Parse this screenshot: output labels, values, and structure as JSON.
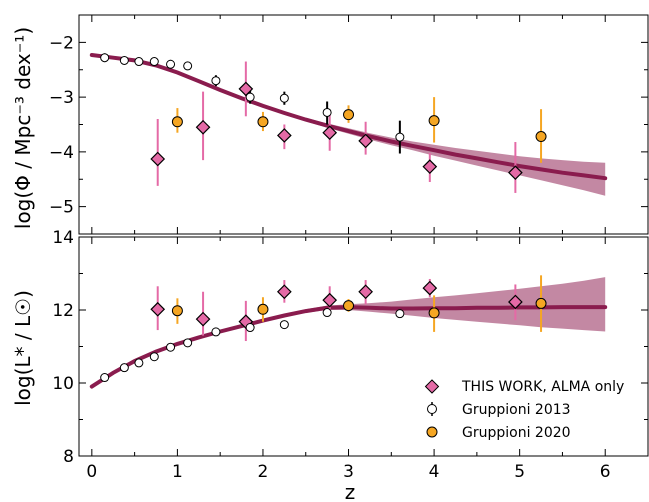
{
  "chart_data": [
    {
      "type": "scatter",
      "panel": "top",
      "ylabel": "log(Φ / Mpc⁻³ dex⁻¹)",
      "xlim": [
        -0.15,
        6.5
      ],
      "ylim": [
        -5.5,
        -1.5
      ],
      "yticks": [
        -5,
        -4,
        -3,
        -2
      ],
      "ytick_labels": [
        "−5",
        "−4",
        "−3",
        "−2"
      ],
      "series": [
        {
          "name": "THIS WORK, ALMA only",
          "color": "#e46aa6",
          "edge_color": "#000000",
          "marker": "diamond",
          "points": [
            {
              "x": 0.77,
              "y": -4.13,
              "lo": -4.62,
              "hi": -3.4
            },
            {
              "x": 1.3,
              "y": -3.55,
              "lo": -4.15,
              "hi": -2.9
            },
            {
              "x": 1.8,
              "y": -2.85,
              "lo": -3.35,
              "hi": -2.35
            },
            {
              "x": 2.25,
              "y": -3.7,
              "lo": -3.95,
              "hi": -3.5
            },
            {
              "x": 2.78,
              "y": -3.65,
              "lo": -3.98,
              "hi": -3.3
            },
            {
              "x": 3.2,
              "y": -3.8,
              "lo": -4.05,
              "hi": -3.45
            },
            {
              "x": 3.95,
              "y": -4.27,
              "lo": -4.55,
              "hi": -4.02
            },
            {
              "x": 4.95,
              "y": -4.38,
              "lo": -4.75,
              "hi": -3.82
            }
          ]
        },
        {
          "name": "Gruppioni 2013",
          "color": "#ffffff",
          "edge_color": "#000000",
          "marker": "circle",
          "points": [
            {
              "x": 0.15,
              "y": -2.28,
              "lo": -2.36,
              "hi": -2.2
            },
            {
              "x": 0.38,
              "y": -2.33,
              "lo": -2.4,
              "hi": -2.26
            },
            {
              "x": 0.55,
              "y": -2.35,
              "lo": -2.42,
              "hi": -2.28
            },
            {
              "x": 0.73,
              "y": -2.35,
              "lo": -2.42,
              "hi": -2.28
            },
            {
              "x": 0.92,
              "y": -2.4,
              "lo": -2.48,
              "hi": -2.32
            },
            {
              "x": 1.12,
              "y": -2.43,
              "lo": -2.5,
              "hi": -2.36
            },
            {
              "x": 1.45,
              "y": -2.7,
              "lo": -2.8,
              "hi": -2.6
            },
            {
              "x": 1.85,
              "y": -3.0,
              "lo": -3.12,
              "hi": -2.88
            },
            {
              "x": 2.25,
              "y": -3.02,
              "lo": -3.14,
              "hi": -2.9
            },
            {
              "x": 2.75,
              "y": -3.28,
              "lo": -3.5,
              "hi": -3.08
            },
            {
              "x": 3.6,
              "y": -3.73,
              "lo": -4.03,
              "hi": -3.43
            }
          ]
        },
        {
          "name": "Gruppioni 2020",
          "color": "#f5a623",
          "edge_color": "#000000",
          "marker": "circle",
          "points": [
            {
              "x": 1.0,
              "y": -3.45,
              "lo": -3.65,
              "hi": -3.2
            },
            {
              "x": 2.0,
              "y": -3.45,
              "lo": -3.62,
              "hi": -3.27
            },
            {
              "x": 3.0,
              "y": -3.32,
              "lo": -3.47,
              "hi": -3.15
            },
            {
              "x": 4.0,
              "y": -3.43,
              "lo": -3.83,
              "hi": -3.0
            },
            {
              "x": 5.25,
              "y": -3.72,
              "lo": -4.2,
              "hi": -3.22
            }
          ]
        }
      ],
      "model": {
        "color": "#8a1c4e",
        "band_color": "#b46a8c",
        "x": [
          0.0,
          0.25,
          0.5,
          0.75,
          1.0,
          1.25,
          1.5,
          1.75,
          2.0,
          2.25,
          2.5,
          2.75,
          3.0,
          3.25,
          3.5,
          3.75,
          4.0,
          4.25,
          4.5,
          4.75,
          5.0,
          5.25,
          5.5,
          5.75,
          6.0
        ],
        "y": [
          -2.23,
          -2.28,
          -2.33,
          -2.42,
          -2.55,
          -2.71,
          -2.87,
          -3.02,
          -3.16,
          -3.29,
          -3.41,
          -3.52,
          -3.62,
          -3.72,
          -3.81,
          -3.89,
          -3.97,
          -4.05,
          -4.12,
          -4.19,
          -4.26,
          -4.32,
          -4.38,
          -4.43,
          -4.48
        ],
        "lo": [
          -2.26,
          -2.31,
          -2.36,
          -2.45,
          -2.58,
          -2.74,
          -2.9,
          -3.05,
          -3.19,
          -3.32,
          -3.44,
          -3.56,
          -3.67,
          -3.78,
          -3.88,
          -3.97,
          -4.07,
          -4.16,
          -4.25,
          -4.34,
          -4.43,
          -4.52,
          -4.61,
          -4.7,
          -4.8
        ],
        "hi": [
          -2.2,
          -2.25,
          -2.3,
          -2.39,
          -2.52,
          -2.68,
          -2.84,
          -2.99,
          -3.13,
          -3.26,
          -3.38,
          -3.48,
          -3.57,
          -3.66,
          -3.74,
          -3.81,
          -3.87,
          -3.93,
          -3.98,
          -4.03,
          -4.08,
          -4.12,
          -4.15,
          -4.18,
          -4.2
        ]
      }
    },
    {
      "type": "scatter",
      "panel": "bottom",
      "xlabel": "z",
      "ylabel": "log(L* / L☉)",
      "xlim": [
        -0.15,
        6.5
      ],
      "ylim": [
        8,
        14
      ],
      "xticks": [
        0,
        1,
        2,
        3,
        4,
        5,
        6
      ],
      "xtick_labels": [
        "0",
        "1",
        "2",
        "3",
        "4",
        "5",
        "6"
      ],
      "yticks": [
        8,
        10,
        12,
        14
      ],
      "ytick_labels": [
        "8",
        "10",
        "12",
        "14"
      ],
      "series": [
        {
          "name": "THIS WORK, ALMA only",
          "color": "#e46aa6",
          "edge_color": "#000000",
          "marker": "diamond",
          "points": [
            {
              "x": 0.77,
              "y": 12.02,
              "lo": 11.45,
              "hi": 12.65
            },
            {
              "x": 1.3,
              "y": 11.75,
              "lo": 11.3,
              "hi": 12.5
            },
            {
              "x": 1.8,
              "y": 11.68,
              "lo": 11.15,
              "hi": 12.25
            },
            {
              "x": 2.25,
              "y": 12.5,
              "lo": 12.2,
              "hi": 12.82
            },
            {
              "x": 2.78,
              "y": 12.27,
              "lo": 11.95,
              "hi": 12.65
            },
            {
              "x": 3.2,
              "y": 12.5,
              "lo": 12.15,
              "hi": 12.82
            },
            {
              "x": 3.95,
              "y": 12.6,
              "lo": 12.35,
              "hi": 12.85
            },
            {
              "x": 4.95,
              "y": 12.22,
              "lo": 11.72,
              "hi": 12.7
            }
          ]
        },
        {
          "name": "Gruppioni 2013",
          "color": "#ffffff",
          "edge_color": "#000000",
          "marker": "circle",
          "points": [
            {
              "x": 0.15,
              "y": 10.15,
              "lo": 10.08,
              "hi": 10.22
            },
            {
              "x": 0.38,
              "y": 10.42,
              "lo": 10.35,
              "hi": 10.49
            },
            {
              "x": 0.55,
              "y": 10.55,
              "lo": 10.48,
              "hi": 10.62
            },
            {
              "x": 0.73,
              "y": 10.72,
              "lo": 10.65,
              "hi": 10.79
            },
            {
              "x": 0.92,
              "y": 10.98,
              "lo": 10.9,
              "hi": 11.06
            },
            {
              "x": 1.12,
              "y": 11.1,
              "lo": 11.02,
              "hi": 11.18
            },
            {
              "x": 1.45,
              "y": 11.4,
              "lo": 11.32,
              "hi": 11.48
            },
            {
              "x": 1.85,
              "y": 11.52,
              "lo": 11.44,
              "hi": 11.6
            },
            {
              "x": 2.25,
              "y": 11.6,
              "lo": 11.52,
              "hi": 11.68
            },
            {
              "x": 2.75,
              "y": 11.93,
              "lo": 11.85,
              "hi": 12.01
            },
            {
              "x": 3.6,
              "y": 11.9,
              "lo": 11.82,
              "hi": 11.98
            }
          ]
        },
        {
          "name": "Gruppioni 2020",
          "color": "#f5a623",
          "edge_color": "#000000",
          "marker": "circle",
          "points": [
            {
              "x": 1.0,
              "y": 11.98,
              "lo": 11.62,
              "hi": 12.32
            },
            {
              "x": 2.0,
              "y": 12.02,
              "lo": 11.68,
              "hi": 12.35
            },
            {
              "x": 3.0,
              "y": 12.12,
              "lo": 11.95,
              "hi": 12.3
            },
            {
              "x": 4.0,
              "y": 11.92,
              "lo": 11.4,
              "hi": 12.4
            },
            {
              "x": 5.25,
              "y": 12.18,
              "lo": 11.4,
              "hi": 12.95
            }
          ]
        }
      ],
      "model": {
        "color": "#8a1c4e",
        "band_color": "#b46a8c",
        "x": [
          0.0,
          0.25,
          0.5,
          0.75,
          1.0,
          1.25,
          1.5,
          1.75,
          2.0,
          2.25,
          2.5,
          2.75,
          3.0,
          3.25,
          3.5,
          3.75,
          4.0,
          4.25,
          4.5,
          4.75,
          5.0,
          5.25,
          5.5,
          5.75,
          6.0
        ],
        "y": [
          9.9,
          10.28,
          10.6,
          10.86,
          11.07,
          11.25,
          11.41,
          11.56,
          11.71,
          11.85,
          11.97,
          12.06,
          12.08,
          12.06,
          12.04,
          12.04,
          12.05,
          12.05,
          12.06,
          12.06,
          12.07,
          12.07,
          12.08,
          12.08,
          12.08
        ],
        "lo": [
          9.86,
          10.24,
          10.56,
          10.82,
          11.03,
          11.21,
          11.37,
          11.52,
          11.67,
          11.81,
          11.92,
          12.0,
          12.0,
          11.95,
          11.9,
          11.84,
          11.78,
          11.73,
          11.68,
          11.63,
          11.58,
          11.53,
          11.49,
          11.45,
          11.41
        ],
        "hi": [
          9.94,
          10.32,
          10.64,
          10.9,
          11.11,
          11.29,
          11.45,
          11.6,
          11.75,
          11.89,
          12.02,
          12.12,
          12.16,
          12.19,
          12.23,
          12.29,
          12.35,
          12.4,
          12.46,
          12.52,
          12.58,
          12.65,
          12.72,
          12.8,
          12.9
        ]
      }
    }
  ],
  "legend": {
    "entries": [
      {
        "label": "THIS WORK, ALMA only",
        "marker": "diamond",
        "color": "#e46aa6"
      },
      {
        "label": "Gruppioni 2013",
        "marker": "circle",
        "color": "#ffffff"
      },
      {
        "label": "Gruppioni 2020",
        "marker": "circle",
        "color": "#f5a623"
      }
    ],
    "placement": "lower-right"
  }
}
